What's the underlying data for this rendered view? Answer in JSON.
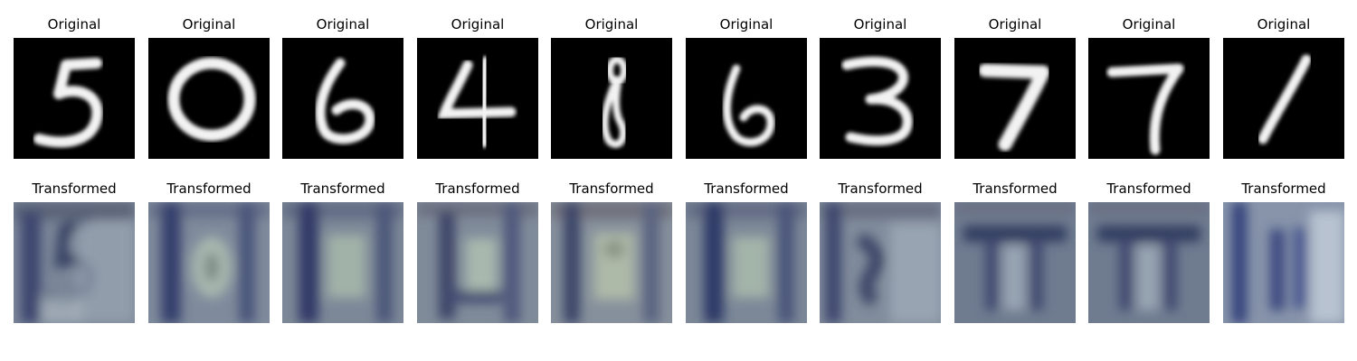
{
  "figure": {
    "row_original_title": "Original",
    "row_transformed_title": "Transformed",
    "digits": [
      "5",
      "0",
      "6",
      "4",
      "8",
      "6",
      "3",
      "7",
      "7",
      "1"
    ],
    "colors": {
      "original_background": "#000000",
      "original_stroke": "#f2f2f2",
      "transformed_base": "#7b8799",
      "transformed_dark": "#2f3b6a",
      "transformed_light": "#b7c0c9"
    },
    "panels": [
      {
        "title_top": "Original",
        "title_bottom": "Transformed",
        "digit": "5"
      },
      {
        "title_top": "Original",
        "title_bottom": "Transformed",
        "digit": "0"
      },
      {
        "title_top": "Original",
        "title_bottom": "Transformed",
        "digit": "6"
      },
      {
        "title_top": "Original",
        "title_bottom": "Transformed",
        "digit": "4"
      },
      {
        "title_top": "Original",
        "title_bottom": "Transformed",
        "digit": "8"
      },
      {
        "title_top": "Original",
        "title_bottom": "Transformed",
        "digit": "6"
      },
      {
        "title_top": "Original",
        "title_bottom": "Transformed",
        "digit": "3"
      },
      {
        "title_top": "Original",
        "title_bottom": "Transformed",
        "digit": "7"
      },
      {
        "title_top": "Original",
        "title_bottom": "Transformed",
        "digit": "7"
      },
      {
        "title_top": "Original",
        "title_bottom": "Transformed",
        "digit": "1"
      }
    ]
  }
}
